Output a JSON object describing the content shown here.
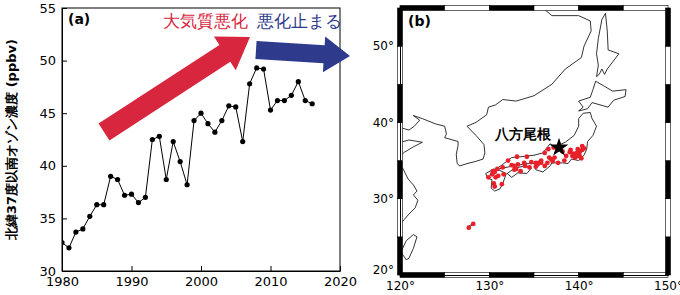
{
  "chart_data": [
    {
      "type": "line",
      "title": "(a)",
      "y_label": "北緯37度以南オゾン濃度 (ppbv)",
      "x": [
        1980,
        1981,
        1982,
        1983,
        1984,
        1985,
        1986,
        1987,
        1988,
        1989,
        1990,
        1991,
        1992,
        1993,
        1994,
        1995,
        1996,
        1997,
        1998,
        1999,
        2000,
        2001,
        2002,
        2003,
        2004,
        2005,
        2006,
        2007,
        2008,
        2009,
        2010,
        2011,
        2012,
        2013,
        2014,
        2015,
        2016
      ],
      "values": [
        32.7,
        32.2,
        33.7,
        34.0,
        35.2,
        36.3,
        36.3,
        39.0,
        38.7,
        37.2,
        37.3,
        36.5,
        37.0,
        42.5,
        42.8,
        38.7,
        42.3,
        40.4,
        38.2,
        44.3,
        45.0,
        44.0,
        43.2,
        44.3,
        45.7,
        45.6,
        42.3,
        47.8,
        49.3,
        49.2,
        45.3,
        46.2,
        46.2,
        46.7,
        48.0,
        46.2,
        45.9
      ],
      "color": "#000000",
      "marker": "circle",
      "xlim": [
        1980,
        2020
      ],
      "xticks": [
        1980,
        1990,
        2000,
        2010,
        2020
      ],
      "ylim": [
        30,
        55
      ],
      "yticks": [
        30,
        35,
        40,
        45,
        50,
        55
      ],
      "annotations": [
        {
          "text": "大気質悪化",
          "color": "#d7263d"
        },
        {
          "text": "悪化止まる",
          "color": "#2e3a8c"
        }
      ]
    },
    {
      "type": "scatter",
      "title": "(b)",
      "x": [
        130.4,
        130.6,
        130.9,
        130.3,
        129.9,
        130.7,
        131.6,
        131.4,
        130.6,
        130.5,
        131.0,
        131.5,
        132.5,
        132.8,
        133.9,
        133.2,
        133.1,
        132.1,
        134.2,
        132.8,
        133.5,
        134.5,
        134.0,
        133.0,
        135.5,
        135.2,
        135.8,
        135.4,
        135.8,
        136.5,
        135.2,
        136.2,
        134.7,
        136.9,
        137.1,
        137.7,
        138.4,
        138.6,
        137.3,
        136.7,
        138.2,
        139.7,
        139.6,
        139.9,
        140.1,
        139.4,
        139.1,
        139.9,
        140.4,
        140.1,
        139.3,
        140.3,
        139.8,
        139.0,
        140.6,
        140.4,
        136.2,
        136.6,
        137.2,
        127.7,
        128.2
      ],
      "values": [
        33.6,
        33.5,
        33.9,
        33.2,
        32.8,
        32.8,
        33.2,
        31.9,
        31.6,
        32.0,
        33.0,
        34.1,
        34.4,
        34.3,
        34.7,
        34.5,
        35.5,
        35.0,
        35.5,
        33.8,
        33.6,
        34.1,
        34.3,
        33.9,
        34.7,
        34.7,
        35.0,
        34.5,
        34.7,
        34.7,
        34.2,
        34.3,
        34.8,
        35.2,
        34.9,
        34.7,
        35.0,
        35.6,
        35.4,
        35.4,
        36.2,
        35.7,
        35.4,
        35.6,
        35.6,
        35.9,
        36.4,
        36.5,
        36.4,
        36.1,
        35.6,
        35.3,
        36.0,
        36.1,
        36.6,
        36.9,
        36.0,
        36.5,
        36.7,
        26.2,
        26.7
      ],
      "color": "#e8202a",
      "marker": "circle",
      "xlim": [
        120,
        150
      ],
      "xticks": [
        {
          "value": 120,
          "label": "120°"
        },
        {
          "value": 130,
          "label": "130°"
        },
        {
          "value": 140,
          "label": "140°"
        },
        {
          "value": 150,
          "label": "150°"
        }
      ],
      "ylim": [
        20,
        55
      ],
      "yticks": [
        {
          "value": 20,
          "label": "20°"
        },
        {
          "value": 30,
          "label": "30°"
        },
        {
          "value": 40,
          "label": "40°"
        },
        {
          "value": 50,
          "label": "50°"
        }
      ],
      "annotations": [
        {
          "text": "八方尾根",
          "x": 137.8,
          "y": 36.7,
          "marker": "star"
        }
      ]
    }
  ]
}
